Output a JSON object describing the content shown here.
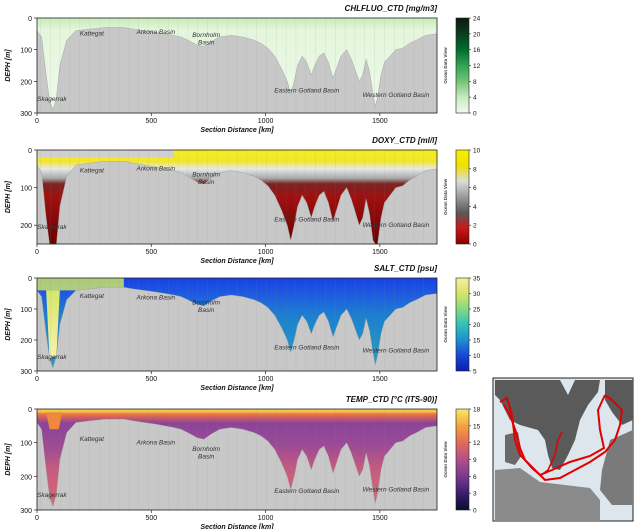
{
  "colors": {
    "land": "#c8c8c8",
    "cruise_track": "#e00000",
    "map_sea": "#dde6ec",
    "map_land": "#5a5a5a"
  },
  "watermark": "Ocean Data View",
  "chart_data": [
    {
      "type": "heatmap",
      "title": "CHLFLUO_CTD [mg/m3]",
      "ylabel": "DEPH [m]",
      "xlabel": "Section Distance [km]",
      "xlim": [
        0,
        1750
      ],
      "ylim": [
        300,
        0
      ],
      "x_ticks": [
        "0",
        "500",
        "1000",
        "1500"
      ],
      "y_ticks": [
        "0",
        "100",
        "200",
        "300"
      ],
      "colorbar": {
        "min": 0,
        "max": 24,
        "ticks": [
          "0",
          "4",
          "8",
          "12",
          "16",
          "20",
          "24"
        ],
        "colors": [
          "#f1faee",
          "#c7e9c0",
          "#74c476",
          "#31a354",
          "#006d2c",
          "#0b3d1f",
          "#0a1a10"
        ]
      },
      "colors_by_depth": [
        "#d8f0cf",
        "#e3f5dc"
      ],
      "basins": [
        {
          "name": "Kattegat",
          "x": 240,
          "y": 55
        },
        {
          "name": "Arkona Basin",
          "x": 520,
          "y": 50
        },
        {
          "name": "Bornholm Basin",
          "x": 740,
          "y": 60
        },
        {
          "name": "Eastern Gotland Basin",
          "x": 1180,
          "y": 235
        },
        {
          "name": "Western Gotland Basin",
          "x": 1570,
          "y": 250
        },
        {
          "name": "Skagerrak",
          "x": 65,
          "y": 262
        }
      ]
    },
    {
      "type": "heatmap",
      "title": "DOXY_CTD [ml/l]",
      "ylabel": "DEPH [m]",
      "xlabel": "Section Distance [km]",
      "xlim": [
        0,
        1750
      ],
      "ylim": [
        250,
        0
      ],
      "x_ticks": [
        "0",
        "500",
        "1000",
        "1500"
      ],
      "y_ticks": [
        "0",
        "100",
        "200"
      ],
      "colorbar": {
        "min": 0,
        "max": 10,
        "ticks": [
          "0",
          "2",
          "4",
          "6",
          "8",
          "10"
        ],
        "colors": [
          "#8b0000",
          "#c81818",
          "#5a5a5a",
          "#9a9a9a",
          "#dcdcdc",
          "#f0e000",
          "#f7f000"
        ]
      },
      "basins": [
        {
          "name": "Kattegat",
          "x": 240,
          "y": 60
        },
        {
          "name": "Arkona Basin",
          "x": 520,
          "y": 55
        },
        {
          "name": "Bornholm Basin",
          "x": 740,
          "y": 70
        },
        {
          "name": "Eastern Gotland Basin",
          "x": 1180,
          "y": 190
        },
        {
          "name": "Western Gotland Basin",
          "x": 1570,
          "y": 205
        },
        {
          "name": "Skagerrak",
          "x": 65,
          "y": 210
        }
      ]
    },
    {
      "type": "heatmap",
      "title": "SALT_CTD [psu]",
      "ylabel": "DEPH [m]",
      "xlabel": "Section Distance [km]",
      "xlim": [
        0,
        1750
      ],
      "ylim": [
        300,
        0
      ],
      "x_ticks": [
        "0",
        "500",
        "1000",
        "1500"
      ],
      "y_ticks": [
        "0",
        "100",
        "200",
        "300"
      ],
      "colorbar": {
        "min": 5,
        "max": 35,
        "ticks": [
          "5",
          "10",
          "15",
          "20",
          "25",
          "30",
          "35"
        ],
        "colors": [
          "#0b1fb0",
          "#1846d6",
          "#1f8fd0",
          "#30c2b8",
          "#86d884",
          "#d6e46a",
          "#f4f0a0"
        ]
      },
      "basins": [
        {
          "name": "Kattegat",
          "x": 240,
          "y": 65
        },
        {
          "name": "Arkona Basin",
          "x": 520,
          "y": 70
        },
        {
          "name": "Bornholm Basin",
          "x": 740,
          "y": 85
        },
        {
          "name": "Eastern Gotland Basin",
          "x": 1180,
          "y": 230
        },
        {
          "name": "Western Gotland Basin",
          "x": 1570,
          "y": 240
        },
        {
          "name": "Skagerrak",
          "x": 65,
          "y": 262
        }
      ]
    },
    {
      "type": "heatmap",
      "title": "TEMP_CTD [°C (ITS-90)]",
      "ylabel": "DEPH [m]",
      "xlabel": "Section Distance [km]",
      "xlim": [
        0,
        1750
      ],
      "ylim": [
        300,
        0
      ],
      "x_ticks": [
        "0",
        "500",
        "1000",
        "1500"
      ],
      "y_ticks": [
        "0",
        "100",
        "200",
        "300"
      ],
      "colorbar": {
        "min": 0,
        "max": 18,
        "ticks": [
          "0",
          "3",
          "6",
          "9",
          "12",
          "15",
          "18"
        ],
        "colors": [
          "#0b0b30",
          "#3a1e6e",
          "#7a3a8f",
          "#b2508a",
          "#e26a5a",
          "#f3a43b",
          "#f8e86a"
        ]
      },
      "basins": [
        {
          "name": "Kattegat",
          "x": 240,
          "y": 95
        },
        {
          "name": "Arkona Basin",
          "x": 520,
          "y": 105
        },
        {
          "name": "Bornholm Basin",
          "x": 740,
          "y": 125
        },
        {
          "name": "Eastern Gotland Basin",
          "x": 1180,
          "y": 250
        },
        {
          "name": "Western Gotland Basin",
          "x": 1570,
          "y": 245
        },
        {
          "name": "Skagerrak",
          "x": 65,
          "y": 262
        }
      ]
    }
  ]
}
